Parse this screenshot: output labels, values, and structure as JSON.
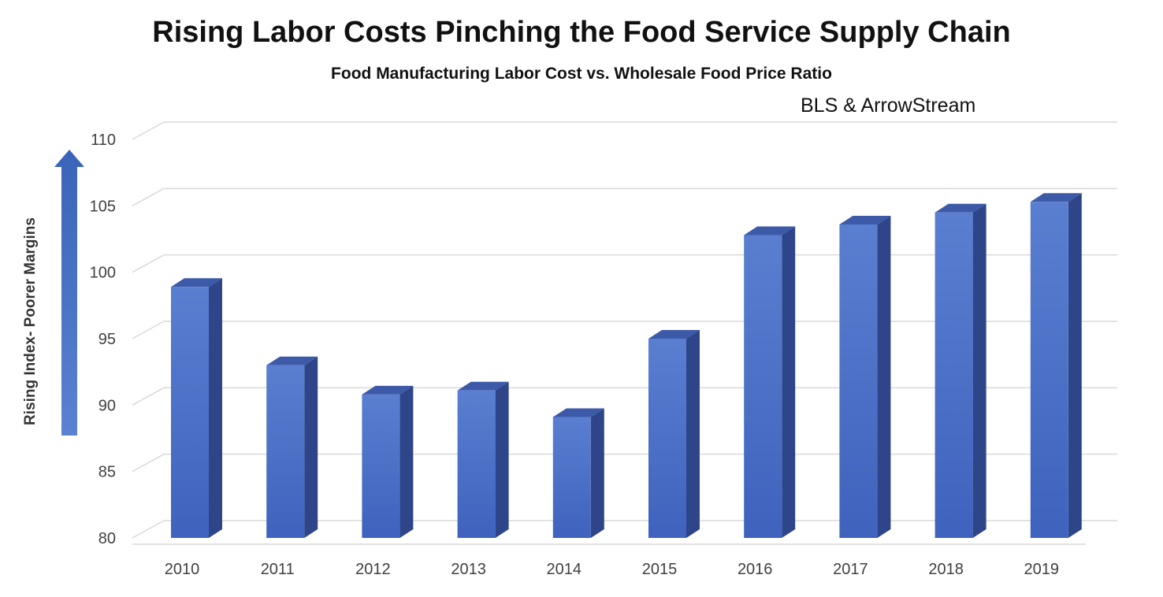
{
  "header": {
    "title": "Rising Labor Costs Pinching the Food Service Supply Chain",
    "subtitle": "Food Manufacturing  Labor Cost vs. Wholesale Food Price Ratio",
    "source": "BLS & ArrowStream"
  },
  "chart_data": {
    "type": "bar",
    "title": "Rising Labor Costs Pinching the Food Service Supply Chain",
    "subtitle": "Food Manufacturing  Labor Cost vs. Wholesale Food Price Ratio",
    "ylabel": "Rising Index- Poorer Margins",
    "xlabel": "",
    "categories": [
      "2010",
      "2011",
      "2012",
      "2013",
      "2014",
      "2015",
      "2016",
      "2017",
      "2018",
      "2019"
    ],
    "values": [
      98.9,
      93.0,
      90.8,
      91.1,
      89.1,
      95.0,
      102.8,
      103.6,
      104.5,
      105.3
    ],
    "ylim": [
      80,
      110
    ],
    "yticks": [
      "80",
      "85",
      "90",
      "95",
      "100",
      "105",
      "110"
    ],
    "grid": true,
    "legend": "none",
    "style": "3d-column",
    "colors": {
      "bar": "#4a6cc4",
      "bar_side": "#2e4589",
      "bar_top": "#3d5aa8",
      "grid": "#d9d9d9",
      "arrow": "#4472c4"
    }
  }
}
